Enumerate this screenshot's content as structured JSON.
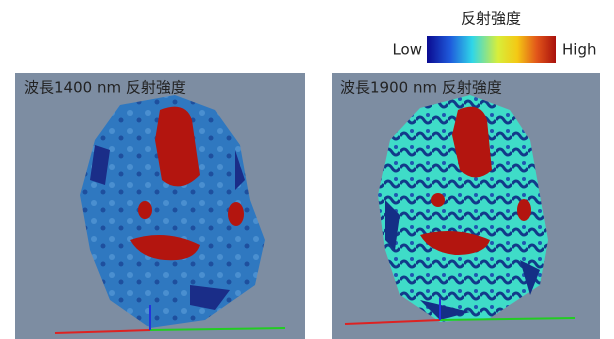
{
  "legend": {
    "title": "反射強度",
    "low": "Low",
    "high": "High"
  },
  "panels": [
    {
      "title": "波長1400 nm 反射強度"
    },
    {
      "title": "波長1900 nm 反射強度"
    }
  ]
}
